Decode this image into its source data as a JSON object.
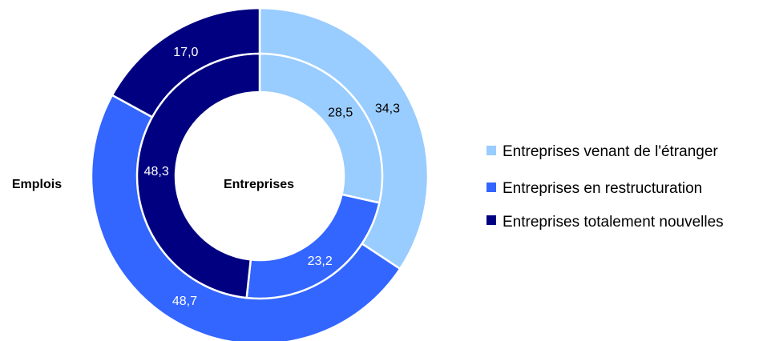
{
  "chart_data": {
    "type": "pie",
    "variant": "nested-donut",
    "categories": [
      "Entreprises venant de l'étranger",
      "Entreprises en restructuration",
      "Entreprises totalement nouvelles"
    ],
    "colors": [
      "#99CCFF",
      "#3366FF",
      "#000080"
    ],
    "label_colors": [
      "#000000",
      "#FFFFFF",
      "#FFFFFF"
    ],
    "series": [
      {
        "name": "Emplois",
        "ring": "outer",
        "values": [
          34.3,
          48.7,
          17.0
        ],
        "labels": [
          "34,3",
          "48,7",
          "17,0"
        ]
      },
      {
        "name": "Entreprises",
        "ring": "inner",
        "values": [
          28.5,
          23.2,
          48.3
        ],
        "labels": [
          "28,5",
          "23,2",
          "48,3"
        ]
      }
    ],
    "legend": {
      "placement": "right",
      "entries": [
        "Entreprises venant de l'étranger",
        "Entreprises en restructuration",
        "Entreprises totalement nouvelles"
      ]
    },
    "start_angle": "top",
    "direction": "clockwise"
  }
}
